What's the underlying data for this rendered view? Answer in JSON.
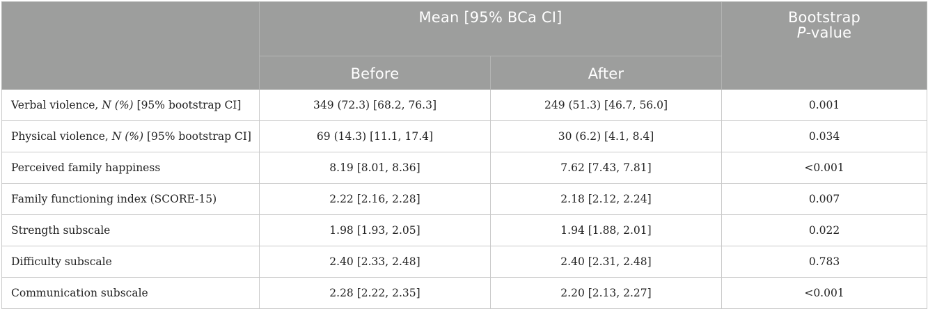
{
  "table": {
    "header": {
      "group_label": "Mean [95% BCa CI]",
      "before_label": "Before",
      "after_label": "After",
      "pvalue_line1": "Bootstrap",
      "pvalue_italic": "P",
      "pvalue_rest": "-value"
    },
    "rows": [
      {
        "label_main": "Verbal violence, ",
        "label_italic": "N (%)",
        "label_tail": " [95% bootstrap CI]",
        "before": "349 (72.3) [68.2, 76.3]",
        "after": "249 (51.3) [46.7, 56.0]",
        "p": "0.001"
      },
      {
        "label_main": "Physical violence, ",
        "label_italic": "N (%)",
        "label_tail": " [95% bootstrap CI]",
        "before": "69 (14.3) [11.1, 17.4]",
        "after": "30 (6.2) [4.1, 8.4]",
        "p": "0.034"
      },
      {
        "label_main": "Perceived family happiness",
        "label_italic": "",
        "label_tail": "",
        "before": "8.19 [8.01, 8.36]",
        "after": "7.62 [7.43, 7.81]",
        "p": "<0.001"
      },
      {
        "label_main": "Family functioning index (SCORE-15)",
        "label_italic": "",
        "label_tail": "",
        "before": "2.22 [2.16, 2.28]",
        "after": "2.18 [2.12, 2.24]",
        "p": "0.007"
      },
      {
        "label_main": "Strength subscale",
        "label_italic": "",
        "label_tail": "",
        "before": "1.98 [1.93, 2.05]",
        "after": "1.94 [1.88, 2.01]",
        "p": "0.022"
      },
      {
        "label_main": "Difficulty subscale",
        "label_italic": "",
        "label_tail": "",
        "before": "2.40 [2.33, 2.48]",
        "after": "2.40 [2.31, 2.48]",
        "p": "0.783"
      },
      {
        "label_main": "Communication subscale",
        "label_italic": "",
        "label_tail": "",
        "before": "2.28 [2.22, 2.35]",
        "after": "2.20 [2.13, 2.27]",
        "p": "<0.001"
      }
    ]
  },
  "colors": {
    "header_bg": "#9d9e9d",
    "header_text": "#ffffff",
    "border": "#c9c9c9",
    "body_text": "#222222"
  }
}
